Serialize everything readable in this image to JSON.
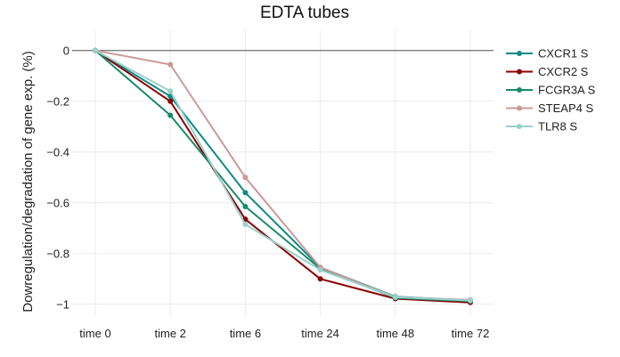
{
  "chart_data": {
    "type": "line",
    "title": "EDTA tubes",
    "xlabel": "",
    "ylabel": "Dowregulation/degradation of gene exp. (%)",
    "categories": [
      "time 0",
      "time 2",
      "time 6",
      "time 24",
      "time 48",
      "time 72"
    ],
    "ylim": [
      -1.05,
      0.08
    ],
    "yticks": [
      0,
      -0.2,
      -0.4,
      -0.6,
      -0.8,
      -1
    ],
    "ytick_labels": [
      "0",
      "−0.2",
      "−0.4",
      "−0.6",
      "−0.8",
      "−1"
    ],
    "grid": true,
    "legend_position": "right",
    "series": [
      {
        "name": "CXCR1 S",
        "color": "#0f8a85",
        "values": [
          0,
          -0.18,
          -0.56,
          -0.855,
          -0.97,
          -0.985
        ]
      },
      {
        "name": "CXCR2 S",
        "color": "#8b0000",
        "values": [
          0,
          -0.2,
          -0.665,
          -0.9,
          -0.978,
          -0.993
        ]
      },
      {
        "name": "FCGR3A S",
        "color": "#1a8a6a",
        "values": [
          0,
          -0.255,
          -0.615,
          -0.86,
          -0.975,
          -0.988
        ]
      },
      {
        "name": "STEAP4 S",
        "color": "#cc9999",
        "values": [
          0,
          -0.055,
          -0.5,
          -0.855,
          -0.972,
          -0.983
        ]
      },
      {
        "name": "TLR8 S",
        "color": "#99d1cc",
        "values": [
          0,
          -0.16,
          -0.685,
          -0.865,
          -0.972,
          -0.985
        ]
      }
    ]
  }
}
